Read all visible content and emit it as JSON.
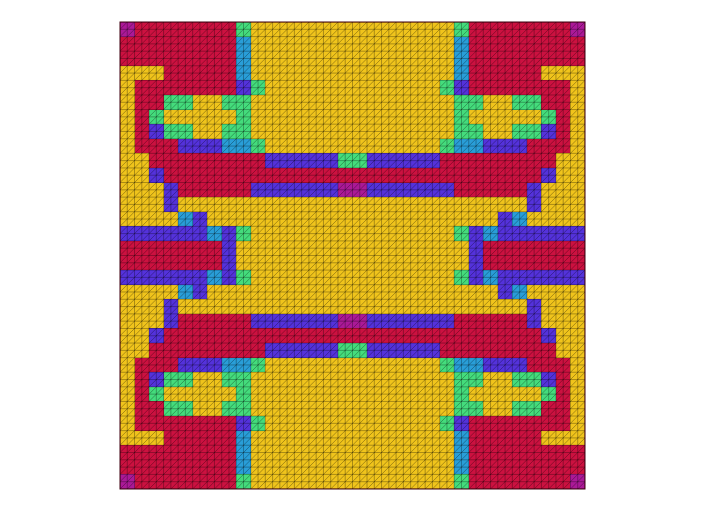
{
  "chart_data": {
    "type": "heatmap",
    "tick_labels": false,
    "zlim": [
      0,
      1
    ],
    "cells": [
      [
        0.15,
        0,
        0,
        0,
        0,
        0,
        0,
        0,
        0.7,
        1,
        1,
        1,
        1,
        1,
        1,
        1,
        1,
        1,
        1,
        1,
        1,
        1,
        1,
        0.7,
        0,
        0,
        0,
        0,
        0,
        0,
        0,
        0.15
      ],
      [
        0,
        0,
        0,
        0,
        0,
        0,
        0,
        0,
        0.5,
        1,
        1,
        1,
        1,
        1,
        1,
        1,
        1,
        1,
        1,
        1,
        1,
        1,
        1,
        0.5,
        0,
        0,
        0,
        0,
        0,
        0,
        0,
        0
      ],
      [
        0,
        0,
        0,
        0,
        0,
        0,
        0,
        0,
        0.5,
        1,
        1,
        1,
        1,
        1,
        1,
        1,
        1,
        1,
        1,
        1,
        1,
        1,
        1,
        0.5,
        0,
        0,
        0,
        0,
        0,
        0,
        0,
        0
      ],
      [
        1,
        1,
        1,
        0,
        0,
        0,
        0,
        0,
        0.5,
        1,
        1,
        1,
        1,
        1,
        1,
        1,
        1,
        1,
        1,
        1,
        1,
        1,
        1,
        0.5,
        0,
        0,
        0,
        0,
        0,
        1,
        1,
        1
      ],
      [
        1,
        0,
        0,
        0,
        0,
        0,
        0,
        0,
        0.35,
        0.7,
        1,
        1,
        1,
        1,
        1,
        1,
        1,
        1,
        1,
        1,
        1,
        1,
        0.7,
        0.35,
        0,
        0,
        0,
        0,
        0,
        0,
        0,
        1
      ],
      [
        1,
        0,
        0,
        0.7,
        0.7,
        1,
        1,
        0.7,
        0.7,
        1,
        1,
        1,
        1,
        1,
        1,
        1,
        1,
        1,
        1,
        1,
        1,
        1,
        1,
        0.7,
        0.7,
        1,
        1,
        0.7,
        0.7,
        0,
        0,
        1
      ],
      [
        1,
        0,
        0.7,
        1,
        1,
        1,
        1,
        1,
        0.7,
        1,
        1,
        1,
        1,
        1,
        1,
        1,
        1,
        1,
        1,
        1,
        1,
        1,
        1,
        0.7,
        1,
        1,
        1,
        1,
        1,
        0.7,
        0,
        1
      ],
      [
        1,
        0,
        0.35,
        0.7,
        0.7,
        1,
        1,
        0.7,
        0.7,
        1,
        1,
        1,
        1,
        1,
        1,
        1,
        1,
        1,
        1,
        1,
        1,
        1,
        1,
        0.7,
        0.7,
        1,
        1,
        0.7,
        0.7,
        0.35,
        0,
        1
      ],
      [
        1,
        0,
        0,
        0,
        0.35,
        0.35,
        0.35,
        0.5,
        0.5,
        0.7,
        1,
        1,
        1,
        1,
        1,
        1,
        1,
        1,
        1,
        1,
        1,
        1,
        0.7,
        0.5,
        0.5,
        0.35,
        0.35,
        0.35,
        0,
        0,
        0,
        1
      ],
      [
        1,
        1,
        0,
        0,
        0,
        0,
        0,
        0,
        0,
        0,
        0.35,
        0.35,
        0.35,
        0.35,
        0.35,
        0.7,
        0.7,
        0.35,
        0.35,
        0.35,
        0.35,
        0.35,
        0,
        0,
        0,
        0,
        0,
        0,
        0,
        0,
        1,
        1
      ],
      [
        1,
        1,
        0.35,
        0,
        0,
        0,
        0,
        0,
        0,
        0,
        0,
        0,
        0,
        0,
        0,
        0,
        0,
        0,
        0,
        0,
        0,
        0,
        0,
        0,
        0,
        0,
        0,
        0,
        0,
        0.35,
        1,
        1
      ],
      [
        1,
        1,
        1,
        0.35,
        0,
        0,
        0,
        0,
        0,
        0.35,
        0.35,
        0.35,
        0.35,
        0.35,
        0.35,
        0.15,
        0.15,
        0.35,
        0.35,
        0.35,
        0.35,
        0.35,
        0.35,
        0,
        0,
        0,
        0,
        0,
        0.35,
        1,
        1,
        1
      ],
      [
        1,
        1,
        1,
        0.35,
        1,
        1,
        1,
        1,
        1,
        1,
        1,
        1,
        1,
        1,
        1,
        1,
        1,
        1,
        1,
        1,
        1,
        1,
        1,
        1,
        1,
        1,
        1,
        1,
        0.35,
        1,
        1,
        1
      ],
      [
        1,
        1,
        1,
        1,
        0.5,
        0.35,
        1,
        1,
        1,
        1,
        1,
        1,
        1,
        1,
        1,
        1,
        1,
        1,
        1,
        1,
        1,
        1,
        1,
        1,
        1,
        1,
        0.35,
        0.5,
        1,
        1,
        1,
        1
      ],
      [
        0.35,
        0.35,
        0.35,
        0.35,
        0.35,
        0.35,
        0.5,
        0.35,
        0.7,
        1,
        1,
        1,
        1,
        1,
        1,
        1,
        1,
        1,
        1,
        1,
        1,
        1,
        1,
        0.7,
        0.35,
        0.5,
        0.35,
        0.35,
        0.35,
        0.35,
        0.35,
        0.35
      ],
      [
        0,
        0,
        0,
        0,
        0,
        0,
        0,
        0.35,
        1,
        1,
        1,
        1,
        1,
        1,
        1,
        1,
        1,
        1,
        1,
        1,
        1,
        1,
        1,
        1,
        0.35,
        0,
        0,
        0,
        0,
        0,
        0,
        0
      ],
      [
        0,
        0,
        0,
        0,
        0,
        0,
        0,
        0.35,
        1,
        1,
        1,
        1,
        1,
        1,
        1,
        1,
        1,
        1,
        1,
        1,
        1,
        1,
        1,
        1,
        0.35,
        0,
        0,
        0,
        0,
        0,
        0,
        0
      ],
      [
        0.35,
        0.35,
        0.35,
        0.35,
        0.35,
        0.35,
        0.5,
        0.35,
        0.7,
        1,
        1,
        1,
        1,
        1,
        1,
        1,
        1,
        1,
        1,
        1,
        1,
        1,
        1,
        0.7,
        0.35,
        0.5,
        0.35,
        0.35,
        0.35,
        0.35,
        0.35,
        0.35
      ],
      [
        1,
        1,
        1,
        1,
        0.5,
        0.35,
        1,
        1,
        1,
        1,
        1,
        1,
        1,
        1,
        1,
        1,
        1,
        1,
        1,
        1,
        1,
        1,
        1,
        1,
        1,
        1,
        0.35,
        0.5,
        1,
        1,
        1,
        1
      ],
      [
        1,
        1,
        1,
        0.35,
        1,
        1,
        1,
        1,
        1,
        1,
        1,
        1,
        1,
        1,
        1,
        1,
        1,
        1,
        1,
        1,
        1,
        1,
        1,
        1,
        1,
        1,
        1,
        1,
        0.35,
        1,
        1,
        1
      ],
      [
        1,
        1,
        1,
        0.35,
        0,
        0,
        0,
        0,
        0,
        0.35,
        0.35,
        0.35,
        0.35,
        0.35,
        0.35,
        0.15,
        0.15,
        0.35,
        0.35,
        0.35,
        0.35,
        0.35,
        0.35,
        0,
        0,
        0,
        0,
        0,
        0.35,
        1,
        1,
        1
      ],
      [
        1,
        1,
        0.35,
        0,
        0,
        0,
        0,
        0,
        0,
        0,
        0,
        0,
        0,
        0,
        0,
        0,
        0,
        0,
        0,
        0,
        0,
        0,
        0,
        0,
        0,
        0,
        0,
        0,
        0,
        0.35,
        1,
        1
      ],
      [
        1,
        1,
        0,
        0,
        0,
        0,
        0,
        0,
        0,
        0,
        0.35,
        0.35,
        0.35,
        0.35,
        0.35,
        0.7,
        0.7,
        0.35,
        0.35,
        0.35,
        0.35,
        0.35,
        0,
        0,
        0,
        0,
        0,
        0,
        0,
        0,
        1,
        1
      ],
      [
        1,
        0,
        0,
        0,
        0.35,
        0.35,
        0.35,
        0.5,
        0.5,
        0.7,
        1,
        1,
        1,
        1,
        1,
        1,
        1,
        1,
        1,
        1,
        1,
        1,
        0.7,
        0.5,
        0.5,
        0.35,
        0.35,
        0.35,
        0,
        0,
        0,
        1
      ],
      [
        1,
        0,
        0.35,
        0.7,
        0.7,
        1,
        1,
        0.7,
        0.7,
        1,
        1,
        1,
        1,
        1,
        1,
        1,
        1,
        1,
        1,
        1,
        1,
        1,
        1,
        0.7,
        0.7,
        1,
        1,
        0.7,
        0.7,
        0.35,
        0,
        1
      ],
      [
        1,
        0,
        0.7,
        1,
        1,
        1,
        1,
        1,
        0.7,
        1,
        1,
        1,
        1,
        1,
        1,
        1,
        1,
        1,
        1,
        1,
        1,
        1,
        1,
        0.7,
        1,
        1,
        1,
        1,
        1,
        0.7,
        0,
        1
      ],
      [
        1,
        0,
        0,
        0.7,
        0.7,
        1,
        1,
        0.7,
        0.7,
        1,
        1,
        1,
        1,
        1,
        1,
        1,
        1,
        1,
        1,
        1,
        1,
        1,
        1,
        0.7,
        0.7,
        1,
        1,
        0.7,
        0.7,
        0,
        0,
        1
      ],
      [
        1,
        0,
        0,
        0,
        0,
        0,
        0,
        0,
        0.35,
        0.7,
        1,
        1,
        1,
        1,
        1,
        1,
        1,
        1,
        1,
        1,
        1,
        1,
        0.7,
        0.35,
        0,
        0,
        0,
        0,
        0,
        0,
        0,
        1
      ],
      [
        1,
        1,
        1,
        0,
        0,
        0,
        0,
        0,
        0.5,
        1,
        1,
        1,
        1,
        1,
        1,
        1,
        1,
        1,
        1,
        1,
        1,
        1,
        1,
        0.5,
        0,
        0,
        0,
        0,
        0,
        1,
        1,
        1
      ],
      [
        0,
        0,
        0,
        0,
        0,
        0,
        0,
        0,
        0.5,
        1,
        1,
        1,
        1,
        1,
        1,
        1,
        1,
        1,
        1,
        1,
        1,
        1,
        1,
        0.5,
        0,
        0,
        0,
        0,
        0,
        0,
        0,
        0
      ],
      [
        0,
        0,
        0,
        0,
        0,
        0,
        0,
        0,
        0.5,
        1,
        1,
        1,
        1,
        1,
        1,
        1,
        1,
        1,
        1,
        1,
        1,
        1,
        1,
        0.5,
        0,
        0,
        0,
        0,
        0,
        0,
        0,
        0
      ],
      [
        0.15,
        0,
        0,
        0,
        0,
        0,
        0,
        0,
        0.7,
        1,
        1,
        1,
        1,
        1,
        1,
        1,
        1,
        1,
        1,
        1,
        1,
        1,
        1,
        0.7,
        0,
        0,
        0,
        0,
        0,
        0,
        0,
        0.15
      ]
    ]
  }
}
